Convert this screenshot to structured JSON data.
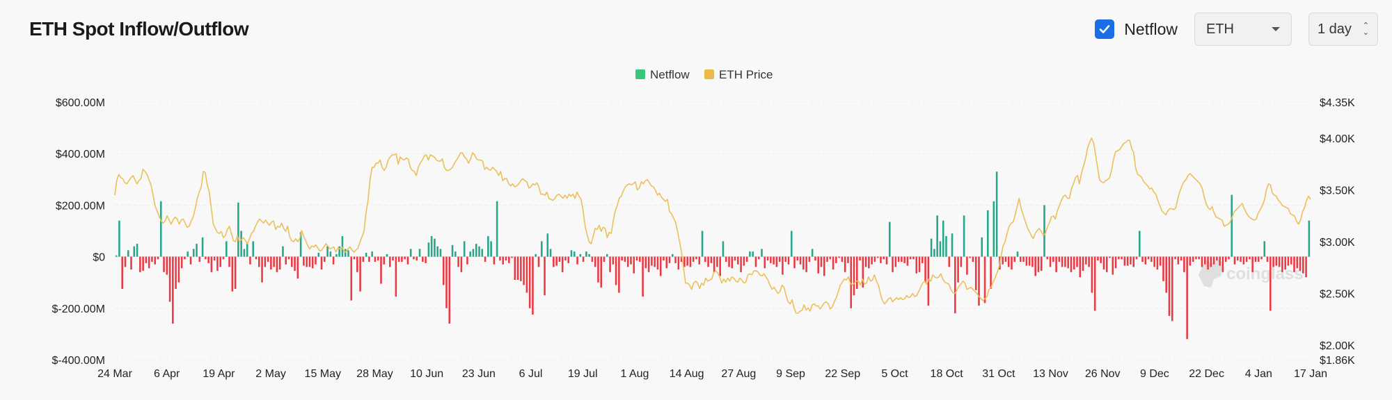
{
  "header": {
    "title": "ETH Spot Inflow/Outflow",
    "netflow_label": "Netflow",
    "asset": "ETH",
    "interval": "1 day"
  },
  "watermark": "coinglass",
  "colors": {
    "inflow": "#26a68a",
    "outflow": "#ea3943",
    "price": "#ebc05a",
    "legend_netflow": "#36c77a",
    "legend_price": "#ebb94a",
    "accent": "#1a6ee6"
  },
  "chart_data": {
    "type": "bar",
    "title": "ETH Spot Inflow/Outflow",
    "legend": [
      {
        "name": "Netflow"
      },
      {
        "name": "ETH Price"
      }
    ],
    "legend_position": "top-center",
    "x_tick_labels": [
      "24 Mar",
      "6 Apr",
      "19 Apr",
      "2 May",
      "15 May",
      "28 May",
      "10 Jun",
      "23 Jun",
      "6 Jul",
      "19 Jul",
      "1 Aug",
      "14 Aug",
      "27 Aug",
      "9 Sep",
      "22 Sep",
      "5 Oct",
      "18 Oct",
      "31 Oct",
      "13 Nov",
      "26 Nov",
      "9 Dec",
      "22 Dec",
      "4 Jan",
      "17 Jan"
    ],
    "y_left": {
      "label": "Netflow",
      "range": [
        -400,
        600
      ],
      "unit": "$M",
      "ticks": [
        "$600.00M",
        "$400.00M",
        "$200.00M",
        "$0",
        "$-200.00M",
        "$-400.00M"
      ]
    },
    "y_right": {
      "label": "ETH Price",
      "range": [
        1860,
        4350
      ],
      "ticks": [
        "$4.35K",
        "$4.00K",
        "$3.50K",
        "$3.00K",
        "$2.50K",
        "$2.00K",
        "$1.86K"
      ]
    },
    "grid": true,
    "series": [
      {
        "name": "Netflow",
        "axis": "left",
        "type": "bar",
        "values": [
          5,
          140,
          -125,
          -40,
          25,
          -50,
          40,
          50,
          -60,
          -55,
          -25,
          -45,
          -20,
          -30,
          -10,
          215,
          -60,
          -70,
          -175,
          -260,
          -125,
          -100,
          -45,
          -10,
          20,
          -30,
          30,
          50,
          -20,
          75,
          -10,
          -25,
          -60,
          -15,
          -55,
          -40,
          -10,
          60,
          -40,
          -135,
          -125,
          210,
          100,
          30,
          50,
          -30,
          60,
          -10,
          -40,
          -100,
          -40,
          -20,
          -50,
          -40,
          -60,
          -50,
          40,
          -30,
          -10,
          -40,
          -55,
          -85,
          95,
          -35,
          -40,
          -40,
          -45,
          -30,
          15,
          -50,
          -20,
          40,
          20,
          -30,
          10,
          40,
          80,
          30,
          25,
          -170,
          -10,
          -60,
          -135,
          -20,
          15,
          -20,
          20,
          -20,
          -15,
          -105,
          -30,
          10,
          -40,
          -15,
          -155,
          -20,
          -20,
          -10,
          -30,
          30,
          -10,
          -15,
          30,
          -20,
          -25,
          55,
          80,
          70,
          40,
          30,
          -110,
          -200,
          -260,
          45,
          20,
          -40,
          -60,
          60,
          -30,
          20,
          30,
          50,
          40,
          30,
          -20,
          80,
          60,
          -30,
          215,
          -15,
          -30,
          -15,
          -25,
          -5,
          -90,
          -90,
          -95,
          -110,
          -140,
          -200,
          -225,
          10,
          -40,
          60,
          -150,
          90,
          30,
          -40,
          -35,
          -20,
          -60,
          -15,
          -25,
          25,
          20,
          -30,
          10,
          -20,
          20,
          10,
          -20,
          -40,
          -100,
          -120,
          -20,
          10,
          -60,
          -30,
          -110,
          -140,
          -15,
          -20,
          -40,
          -30,
          -65,
          -15,
          -20,
          -155,
          -45,
          -60,
          -35,
          -40,
          -50,
          -75,
          -15,
          -45,
          -25,
          10,
          -25,
          -50,
          -20,
          -40,
          -35,
          -40,
          -20,
          -10,
          -30,
          100,
          -20,
          -40,
          -25,
          -60,
          -40,
          -75,
          60,
          -20,
          -40,
          -45,
          -15,
          -30,
          -60,
          -35,
          -20,
          20,
          20,
          -40,
          -10,
          30,
          -45,
          -15,
          -25,
          -30,
          -40,
          -20,
          -70,
          -20,
          -30,
          100,
          -45,
          -15,
          -30,
          -50,
          -60,
          -20,
          30,
          -15,
          -65,
          -40,
          -75,
          -20,
          -10,
          -50,
          -25,
          -5,
          -20,
          -60,
          -25,
          -200,
          -150,
          -125,
          -15,
          -120,
          -40,
          -45,
          -30,
          -20,
          -5,
          -25,
          -10,
          -30,
          135,
          -60,
          -40,
          -20,
          -20,
          -25,
          -35,
          -10,
          -10,
          -65,
          -60,
          -25,
          -100,
          -190,
          70,
          30,
          160,
          60,
          140,
          80,
          -40,
          90,
          -220,
          -100,
          -40,
          160,
          -70,
          -5,
          -20,
          -130,
          -190,
          75,
          -180,
          180,
          -125,
          215,
          330,
          -50,
          -30,
          -20,
          -40,
          -50,
          -20,
          20,
          -20,
          -20,
          -35,
          -35,
          -40,
          -75,
          -60,
          -55,
          200,
          -10,
          -40,
          -20,
          -60,
          -20,
          -40,
          -40,
          -45,
          -60,
          -50,
          -40,
          -80,
          -55,
          -30,
          -40,
          -140,
          -210,
          -15,
          -25,
          -50,
          -60,
          -5,
          -70,
          -45,
          -10,
          -10,
          -35,
          -35,
          -30,
          -40,
          -10,
          100,
          -20,
          -30,
          -10,
          -20,
          -40,
          -50,
          -35,
          -95,
          -140,
          -230,
          -250,
          -10,
          -30,
          -15,
          -60,
          -320,
          -35,
          -20,
          -10,
          -10,
          -40,
          -30,
          -50,
          -40,
          -30,
          -15,
          -35,
          -60,
          -20,
          -10,
          240,
          -30,
          -15,
          -20,
          -30,
          -20,
          -10,
          -60,
          -20,
          -20,
          -10,
          60,
          -20,
          -210,
          -40,
          -35,
          -40,
          -60,
          -50,
          -35,
          -30,
          -60,
          -45,
          -55,
          -65,
          -80,
          140
        ]
      },
      {
        "name": "ETH Price",
        "axis": "right",
        "type": "line",
        "values": [
          3450,
          3600,
          3650,
          3620,
          3610,
          3570,
          3560,
          3590,
          3620,
          3640,
          3600,
          3560,
          3590,
          3610,
          3700,
          3680,
          3650,
          3600,
          3550,
          3450,
          3350,
          3300,
          3250,
          3200,
          3180,
          3200,
          3250,
          3210,
          3170,
          3210,
          3240,
          3220,
          3170,
          3210,
          3220,
          3180,
          3140,
          3150,
          3200,
          3240,
          3320,
          3420,
          3480,
          3530,
          3680,
          3670,
          3550,
          3480,
          3320,
          3170,
          3130,
          3090,
          3080,
          3100,
          3040,
          3060,
          3120,
          3150,
          3080,
          3010,
          3000,
          3060,
          3000,
          3020,
          3040,
          3010,
          2980,
          3030,
          3080,
          3100,
          3150,
          3190,
          3220,
          3200,
          3180,
          3210,
          3180,
          3160,
          3190,
          3200,
          3120,
          3150,
          3140,
          3180,
          3130,
          3100,
          3150,
          3050,
          3010,
          3000,
          3030,
          3000,
          3030,
          3110,
          3050,
          3010,
          2960,
          2930,
          2960,
          2950,
          2970,
          2940,
          2910,
          2920,
          2950,
          2980,
          2960,
          2930,
          2940,
          2950,
          2900,
          2940,
          2930,
          2950,
          2910,
          2900,
          2930,
          2950,
          2920,
          2900,
          2920,
          2940,
          3000,
          3050,
          3100,
          3280,
          3400,
          3600,
          3720,
          3720,
          3760,
          3760,
          3790,
          3720,
          3690,
          3720,
          3790,
          3820,
          3840,
          3840,
          3850,
          3750,
          3820,
          3800,
          3790,
          3810,
          3800,
          3720,
          3690,
          3680,
          3640,
          3720,
          3760,
          3790,
          3830,
          3840,
          3790,
          3840,
          3830,
          3820,
          3790,
          3780,
          3780,
          3800,
          3720,
          3690,
          3690,
          3700,
          3720,
          3760,
          3790,
          3820,
          3860,
          3860,
          3820,
          3800,
          3760,
          3800,
          3860,
          3840,
          3800,
          3790,
          3790,
          3780,
          3700,
          3720,
          3700,
          3690,
          3720,
          3700,
          3680,
          3640,
          3680,
          3590,
          3610,
          3610,
          3560,
          3540,
          3560,
          3530,
          3540,
          3560,
          3590,
          3610,
          3590,
          3580,
          3520,
          3530,
          3560,
          3550,
          3570,
          3530,
          3460,
          3460,
          3450,
          3480,
          3420,
          3410,
          3400,
          3420,
          3450,
          3460,
          3440,
          3420,
          3450,
          3420,
          3460,
          3440,
          3460,
          3420,
          3480,
          3440,
          3410,
          3300,
          3150,
          3070,
          3000,
          2980,
          3050,
          3130,
          3120,
          3160,
          3100,
          3140,
          3130,
          3040,
          3090,
          3080,
          3200,
          3300,
          3350,
          3420,
          3440,
          3490,
          3530,
          3550,
          3560,
          3550,
          3560,
          3580,
          3500,
          3520,
          3580,
          3560,
          3590,
          3600,
          3570,
          3540,
          3530,
          3500,
          3450,
          3470,
          3430,
          3410,
          3390,
          3410,
          3290,
          3270,
          3230,
          3190,
          3100,
          3000,
          2900,
          2750,
          2600,
          2600,
          2580,
          2540,
          2600,
          2620,
          2600,
          2550,
          2600,
          2580,
          2650,
          2620,
          2630,
          2640,
          2700,
          2720,
          2700,
          2660,
          2600,
          2640,
          2610,
          2650,
          2620,
          2660,
          2650,
          2620,
          2610,
          2650,
          2630,
          2600,
          2610,
          2680,
          2690,
          2680,
          2720,
          2720,
          2710,
          2680,
          2670,
          2690,
          2660,
          2630,
          2580,
          2540,
          2560,
          2530,
          2500,
          2520,
          2580,
          2560,
          2480,
          2420,
          2400,
          2440,
          2360,
          2310,
          2310,
          2330,
          2340,
          2390,
          2340,
          2360,
          2330,
          2390,
          2400,
          2380,
          2380,
          2350,
          2380,
          2410,
          2420,
          2400,
          2350,
          2370,
          2420,
          2460,
          2520,
          2580,
          2610,
          2640,
          2630,
          2660,
          2600,
          2580,
          2600,
          2620,
          2620,
          2580,
          2640,
          2590,
          2600,
          2660,
          2620,
          2630,
          2680,
          2620,
          2580,
          2490,
          2430,
          2400,
          2420,
          2450,
          2460,
          2420,
          2440,
          2460,
          2440,
          2460,
          2440,
          2450,
          2480,
          2460,
          2470,
          2500,
          2470,
          2480,
          2520,
          2560,
          2600,
          2620,
          2590,
          2640,
          2620,
          2680,
          2660,
          2650,
          2660,
          2690,
          2640,
          2610,
          2600,
          2590,
          2540,
          2510,
          2500,
          2530,
          2570,
          2590,
          2620,
          2600,
          2540,
          2550,
          2560,
          2540,
          2520,
          2500,
          2470,
          2450,
          2430,
          2450,
          2470,
          2540,
          2560,
          2610,
          2650,
          2700,
          2760,
          2860,
          2960,
          3000,
          3080,
          3150,
          3180,
          3190,
          3260,
          3340,
          3420,
          3320,
          3260,
          3200,
          3140,
          3100,
          3060,
          3030,
          3080,
          3110,
          3130,
          3100,
          3060,
          3080,
          3140,
          3180,
          3240,
          3250,
          3220,
          3300,
          3350,
          3400,
          3440,
          3450,
          3420,
          3420,
          3510,
          3560,
          3620,
          3640,
          3560,
          3660,
          3730,
          3800,
          3900,
          3960,
          4000,
          3960,
          3850,
          3720,
          3600,
          3580,
          3570,
          3590,
          3600,
          3620,
          3690,
          3800,
          3870,
          3880,
          3890,
          3920,
          3950,
          3960,
          3980,
          3980,
          3900,
          3860,
          3710,
          3650,
          3640,
          3620,
          3580,
          3560,
          3540,
          3510,
          3520,
          3480,
          3460,
          3400,
          3350,
          3300,
          3280,
          3260,
          3300,
          3320,
          3320,
          3310,
          3330,
          3420,
          3490,
          3540,
          3580,
          3600,
          3640,
          3660,
          3640,
          3620,
          3600,
          3580,
          3560,
          3520,
          3440,
          3370,
          3330,
          3310,
          3340,
          3280,
          3240,
          3230,
          3220,
          3210,
          3150,
          3160,
          3170,
          3190,
          3240,
          3290,
          3310,
          3330,
          3350,
          3370,
          3320,
          3280,
          3250,
          3230,
          3220,
          3210,
          3220,
          3280,
          3310,
          3350,
          3400,
          3500,
          3560,
          3550,
          3470,
          3450,
          3440,
          3400,
          3380,
          3350,
          3340,
          3330,
          3320,
          3270,
          3260,
          3250,
          3200,
          3170,
          3210,
          3290,
          3330,
          3400,
          3440,
          3410
        ]
      }
    ]
  }
}
